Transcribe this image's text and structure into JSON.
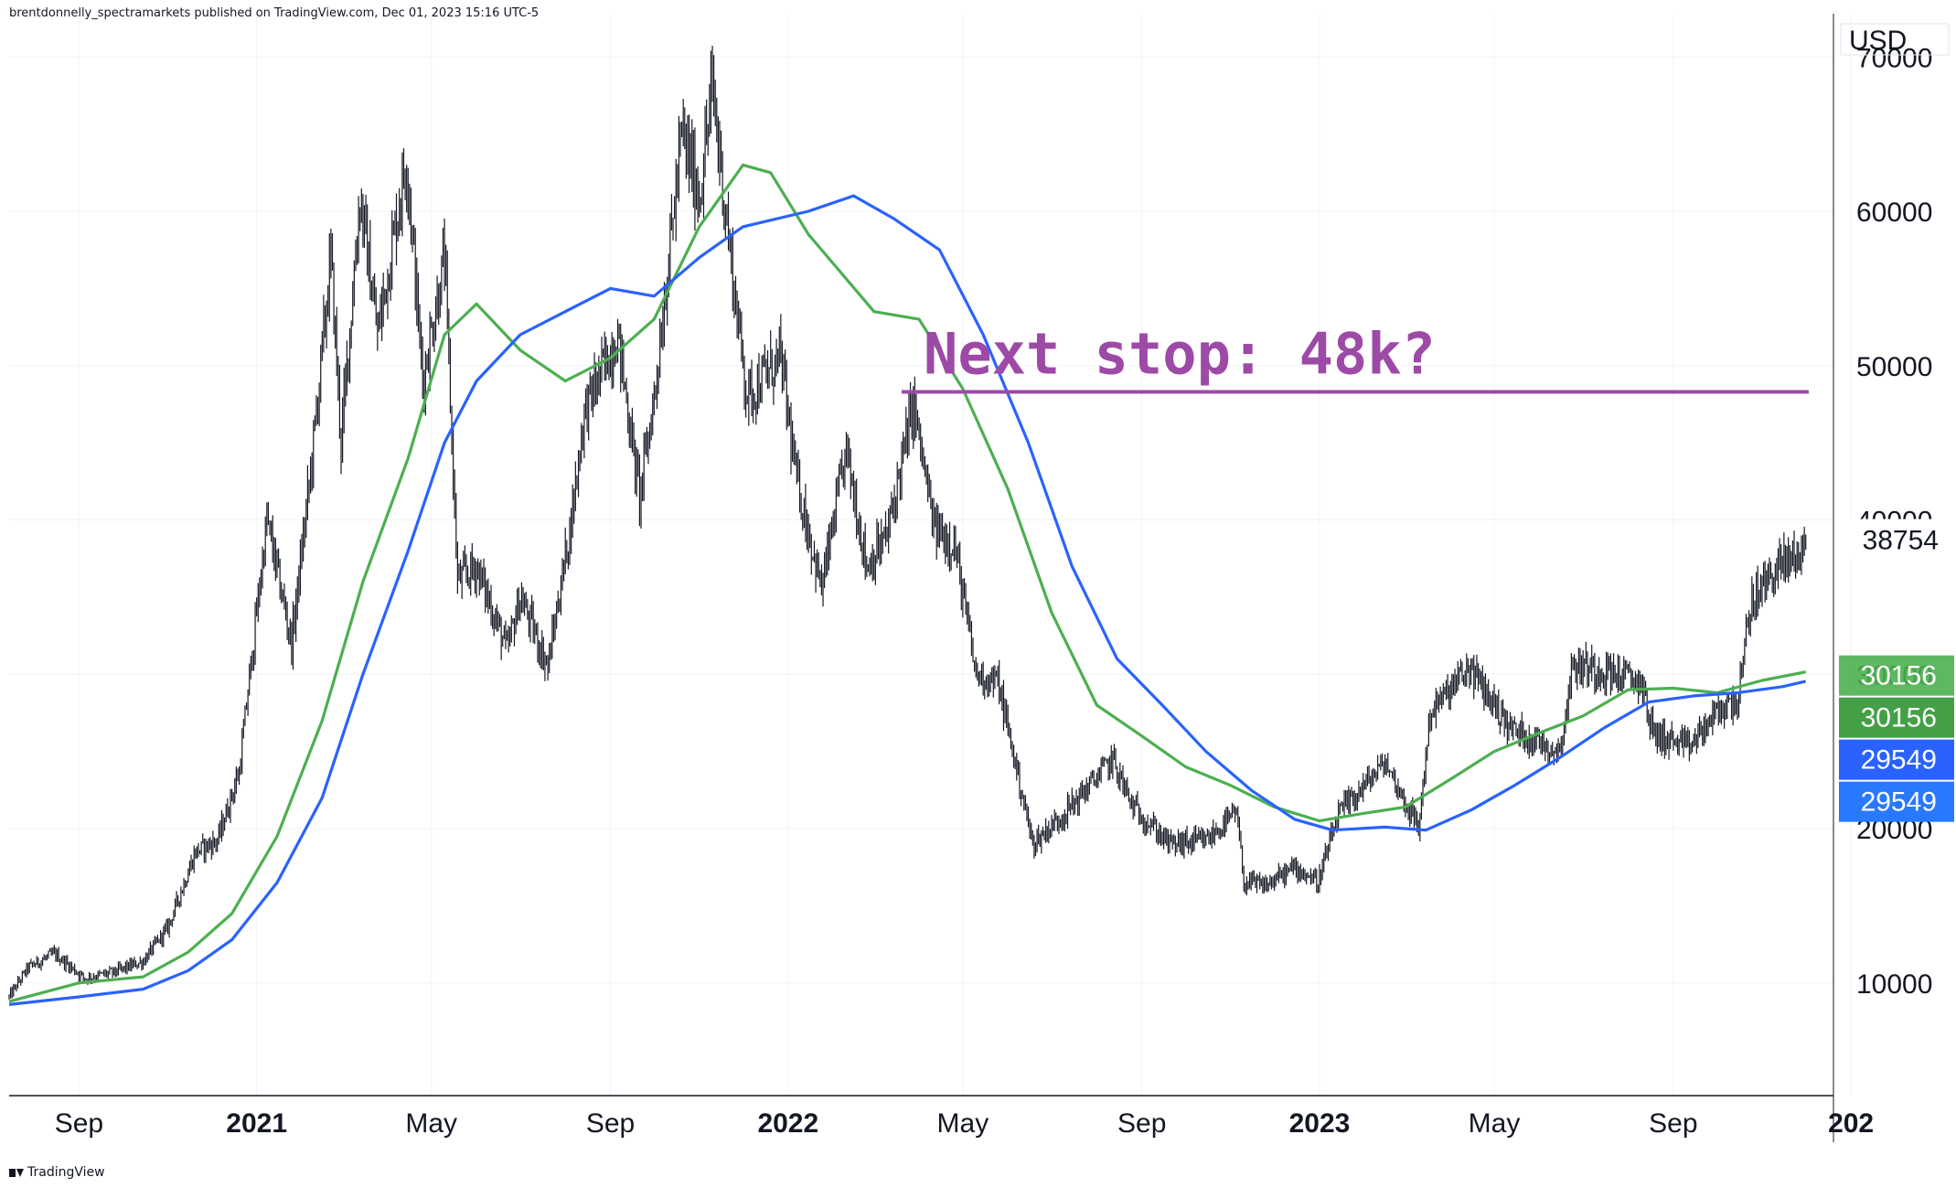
{
  "header": {
    "publisher_line": "brentdonnelly_spectramarkets published on TradingView.com, Dec 01, 2023 15:16 UTC-5"
  },
  "footer": {
    "brand": "TradingView",
    "logo_icon": "tradingview-logo-icon"
  },
  "axis": {
    "currency": "USD"
  },
  "annotation": {
    "text": "Next stop: 48k?",
    "level": 48300,
    "from": "2022-03-20",
    "to": "2023-12-03",
    "color": "#9c4aa6"
  },
  "chart_data": {
    "type": "line",
    "subtype": "candlestick-with-moving-averages",
    "x_range": [
      "2020-07-15",
      "2023-12-20"
    ],
    "y_range": [
      2700,
      72800
    ],
    "y_ticks": [
      10000,
      20000,
      30000,
      40000,
      50000,
      60000,
      70000
    ],
    "y_tick_labels": [
      "10000",
      "20000",
      "30000",
      "40000",
      "50000",
      "60000",
      "70000"
    ],
    "x_ticks": [
      {
        "date": "2020-09-01",
        "label": "Sep",
        "bold": false
      },
      {
        "date": "2021-01-01",
        "label": "2021",
        "bold": true
      },
      {
        "date": "2021-05-01",
        "label": "May",
        "bold": false
      },
      {
        "date": "2021-09-01",
        "label": "Sep",
        "bold": false
      },
      {
        "date": "2022-01-01",
        "label": "2022",
        "bold": true
      },
      {
        "date": "2022-05-01",
        "label": "May",
        "bold": false
      },
      {
        "date": "2022-09-01",
        "label": "Sep",
        "bold": false
      },
      {
        "date": "2023-01-01",
        "label": "2023",
        "bold": true
      },
      {
        "date": "2023-05-01",
        "label": "May",
        "bold": false
      },
      {
        "date": "2023-09-01",
        "label": "Sep",
        "bold": false
      },
      {
        "date": "2024-01-01",
        "label": "202",
        "bold": true
      }
    ],
    "grid": true,
    "price_path": [
      [
        "2020-07-15",
        9100
      ],
      [
        "2020-07-28",
        11000
      ],
      [
        "2020-08-15",
        11900
      ],
      [
        "2020-09-05",
        10300
      ],
      [
        "2020-09-25",
        10700
      ],
      [
        "2020-10-15",
        11400
      ],
      [
        "2020-11-01",
        13600
      ],
      [
        "2020-11-20",
        18500
      ],
      [
        "2020-12-05",
        19200
      ],
      [
        "2020-12-20",
        23700
      ],
      [
        "2021-01-08",
        40000
      ],
      [
        "2021-01-25",
        32000
      ],
      [
        "2021-02-08",
        44000
      ],
      [
        "2021-02-21",
        57000
      ],
      [
        "2021-02-28",
        45000
      ],
      [
        "2021-03-13",
        61000
      ],
      [
        "2021-03-25",
        52000
      ],
      [
        "2021-04-14",
        63500
      ],
      [
        "2021-04-25",
        49000
      ],
      [
        "2021-05-10",
        57000
      ],
      [
        "2021-05-19",
        36000
      ],
      [
        "2021-06-01",
        37000
      ],
      [
        "2021-06-22",
        31500
      ],
      [
        "2021-07-01",
        35000
      ],
      [
        "2021-07-20",
        30500
      ],
      [
        "2021-08-05",
        40000
      ],
      [
        "2021-08-14",
        47000
      ],
      [
        "2021-09-06",
        52000
      ],
      [
        "2021-09-21",
        41500
      ],
      [
        "2021-10-01",
        48000
      ],
      [
        "2021-10-20",
        65000
      ],
      [
        "2021-11-01",
        61000
      ],
      [
        "2021-11-10",
        68000
      ],
      [
        "2021-11-26",
        54000
      ],
      [
        "2021-12-04",
        48000
      ],
      [
        "2021-12-27",
        50500
      ],
      [
        "2022-01-06",
        43000
      ],
      [
        "2022-01-24",
        35500
      ],
      [
        "2022-02-10",
        44500
      ],
      [
        "2022-02-24",
        37000
      ],
      [
        "2022-03-10",
        39000
      ],
      [
        "2022-03-28",
        47500
      ],
      [
        "2022-04-11",
        39500
      ],
      [
        "2022-04-25",
        38500
      ],
      [
        "2022-05-10",
        30000
      ],
      [
        "2022-05-25",
        29500
      ],
      [
        "2022-06-18",
        19000
      ],
      [
        "2022-07-10",
        21000
      ],
      [
        "2022-08-12",
        24500
      ],
      [
        "2022-08-25",
        21500
      ],
      [
        "2022-09-20",
        19000
      ],
      [
        "2022-10-15",
        19200
      ],
      [
        "2022-11-05",
        21000
      ],
      [
        "2022-11-10",
        16500
      ],
      [
        "2022-11-25",
        16300
      ],
      [
        "2022-12-15",
        17500
      ],
      [
        "2022-12-31",
        16550
      ],
      [
        "2023-01-14",
        20900
      ],
      [
        "2023-02-15",
        24300
      ],
      [
        "2023-03-10",
        20000
      ],
      [
        "2023-03-18",
        27500
      ],
      [
        "2023-04-14",
        30400
      ],
      [
        "2023-05-12",
        26500
      ],
      [
        "2023-06-15",
        25000
      ],
      [
        "2023-06-24",
        30600
      ],
      [
        "2023-07-14",
        30300
      ],
      [
        "2023-08-10",
        29500
      ],
      [
        "2023-08-18",
        26200
      ],
      [
        "2023-09-11",
        25200
      ],
      [
        "2023-10-01",
        27500
      ],
      [
        "2023-10-16",
        28500
      ],
      [
        "2023-10-24",
        34500
      ],
      [
        "2023-11-09",
        36700
      ],
      [
        "2023-11-25",
        37800
      ],
      [
        "2023-12-01",
        38754
      ]
    ],
    "series": [
      {
        "name": "",
        "color": "#4caf50",
        "values": [
          [
            "2020-07-15",
            8800
          ],
          [
            "2020-09-01",
            10000
          ],
          [
            "2020-10-15",
            10400
          ],
          [
            "2020-11-15",
            12000
          ],
          [
            "2020-12-15",
            14500
          ],
          [
            "2021-01-15",
            19500
          ],
          [
            "2021-02-15",
            27000
          ],
          [
            "2021-03-15",
            36000
          ],
          [
            "2021-04-15",
            44000
          ],
          [
            "2021-05-10",
            52000
          ],
          [
            "2021-06-01",
            54000
          ],
          [
            "2021-07-01",
            51000
          ],
          [
            "2021-08-01",
            49000
          ],
          [
            "2021-09-01",
            50500
          ],
          [
            "2021-10-01",
            53000
          ],
          [
            "2021-11-01",
            59000
          ],
          [
            "2021-12-01",
            63000
          ],
          [
            "2021-12-20",
            62500
          ],
          [
            "2022-01-15",
            58500
          ],
          [
            "2022-03-01",
            53500
          ],
          [
            "2022-04-01",
            53000
          ],
          [
            "2022-05-01",
            48500
          ],
          [
            "2022-06-01",
            42000
          ],
          [
            "2022-07-01",
            34000
          ],
          [
            "2022-08-01",
            28000
          ],
          [
            "2022-09-01",
            26000
          ],
          [
            "2022-10-01",
            24000
          ],
          [
            "2022-11-01",
            22800
          ],
          [
            "2022-12-01",
            21400
          ],
          [
            "2023-01-01",
            20500
          ],
          [
            "2023-02-01",
            21000
          ],
          [
            "2023-03-01",
            21400
          ],
          [
            "2023-04-01",
            23200
          ],
          [
            "2023-05-01",
            25000
          ],
          [
            "2023-06-01",
            26200
          ],
          [
            "2023-07-01",
            27300
          ],
          [
            "2023-08-01",
            29000
          ],
          [
            "2023-09-01",
            29100
          ],
          [
            "2023-10-01",
            28800
          ],
          [
            "2023-11-01",
            29600
          ],
          [
            "2023-12-01",
            30156
          ]
        ]
      },
      {
        "name": "",
        "color": "#2962ff",
        "values": [
          [
            "2020-07-15",
            8600
          ],
          [
            "2020-09-01",
            9100
          ],
          [
            "2020-10-15",
            9600
          ],
          [
            "2020-11-15",
            10800
          ],
          [
            "2020-12-15",
            12800
          ],
          [
            "2021-01-15",
            16500
          ],
          [
            "2021-02-15",
            22000
          ],
          [
            "2021-03-15",
            30000
          ],
          [
            "2021-04-15",
            38000
          ],
          [
            "2021-05-10",
            45000
          ],
          [
            "2021-06-01",
            49000
          ],
          [
            "2021-07-01",
            52000
          ],
          [
            "2021-08-01",
            53500
          ],
          [
            "2021-09-01",
            55000
          ],
          [
            "2021-10-01",
            54500
          ],
          [
            "2021-11-01",
            57000
          ],
          [
            "2021-12-01",
            59000
          ],
          [
            "2022-01-15",
            60000
          ],
          [
            "2022-02-15",
            61000
          ],
          [
            "2022-03-15",
            59500
          ],
          [
            "2022-04-15",
            57500
          ],
          [
            "2022-05-15",
            52000
          ],
          [
            "2022-06-15",
            45000
          ],
          [
            "2022-07-15",
            37000
          ],
          [
            "2022-08-15",
            31000
          ],
          [
            "2022-09-15",
            28000
          ],
          [
            "2022-10-15",
            25000
          ],
          [
            "2022-11-15",
            22500
          ],
          [
            "2022-12-15",
            20600
          ],
          [
            "2023-01-10",
            19900
          ],
          [
            "2023-02-15",
            20100
          ],
          [
            "2023-03-15",
            19900
          ],
          [
            "2023-04-15",
            21200
          ],
          [
            "2023-05-15",
            22800
          ],
          [
            "2023-06-15",
            24600
          ],
          [
            "2023-07-15",
            26500
          ],
          [
            "2023-08-15",
            28200
          ],
          [
            "2023-09-15",
            28600
          ],
          [
            "2023-10-15",
            28800
          ],
          [
            "2023-11-15",
            29200
          ],
          [
            "2023-12-01",
            29549
          ]
        ]
      }
    ],
    "price_labels": [
      {
        "value": 38754,
        "text": "38754",
        "color": "#ffffff",
        "text_color": "#131722"
      },
      {
        "value": 30156,
        "text": "30156",
        "color": "#4caf50",
        "text_color": "#ffffff",
        "variant": "light"
      },
      {
        "value": 30156,
        "text": "30156",
        "color": "#43a047",
        "text_color": "#ffffff"
      },
      {
        "value": 29549,
        "text": "29549",
        "color": "#2962ff",
        "text_color": "#ffffff",
        "variant": "dark"
      },
      {
        "value": 29549,
        "text": "29549",
        "color": "#2979ff",
        "text_color": "#ffffff"
      }
    ]
  }
}
